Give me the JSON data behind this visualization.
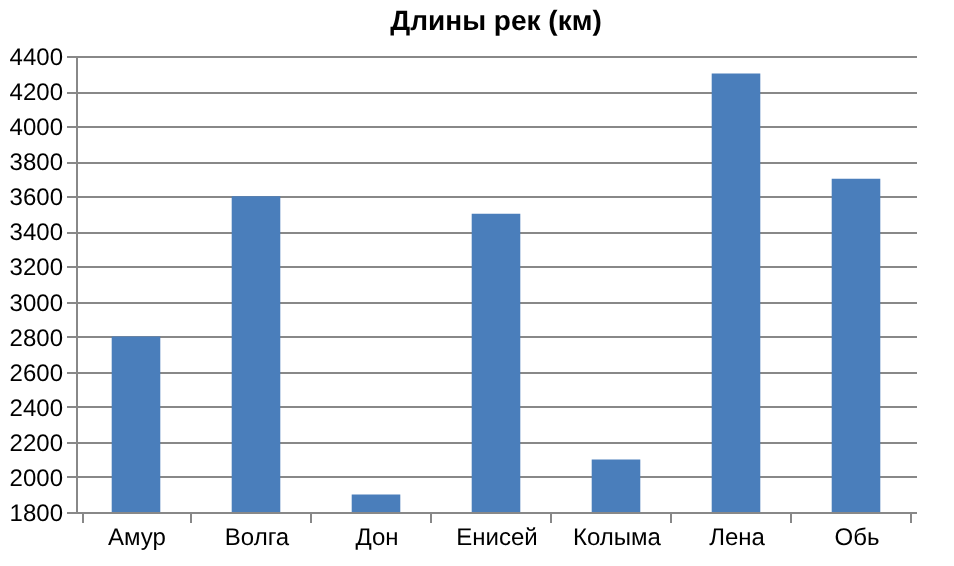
{
  "chart_data": {
    "type": "bar",
    "title": "Длины рек (км)",
    "categories": [
      "Амур",
      "Волга",
      "Дон",
      "Енисей",
      "Колыма",
      "Лена",
      "Обь"
    ],
    "values": [
      2800,
      3600,
      1900,
      3500,
      2100,
      4300,
      3700
    ],
    "color": "#4a7ebb",
    "ylim": [
      1800,
      4400
    ],
    "yticks": [
      1800,
      2000,
      2200,
      2400,
      2600,
      2800,
      3000,
      3200,
      3400,
      3600,
      3800,
      4000,
      4200,
      4400
    ],
    "grid": "y"
  }
}
